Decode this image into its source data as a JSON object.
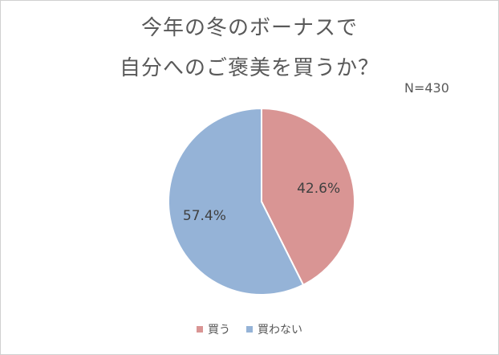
{
  "title_line1": "今年の冬のボーナスで",
  "title_line2": "自分へのご褒美を買うか？",
  "note": "N=430",
  "chart_data": {
    "type": "pie",
    "title": "今年の冬のボーナスで自分へのご褒美を買うか？",
    "categories": [
      "買う",
      "買わない"
    ],
    "values": [
      42.6,
      57.4
    ],
    "data_labels": [
      "42.6%",
      "57.4%"
    ],
    "colors": [
      "#d99594",
      "#95b3d7"
    ],
    "start_angle": "top, clockwise",
    "legend_placement": "bottom"
  }
}
